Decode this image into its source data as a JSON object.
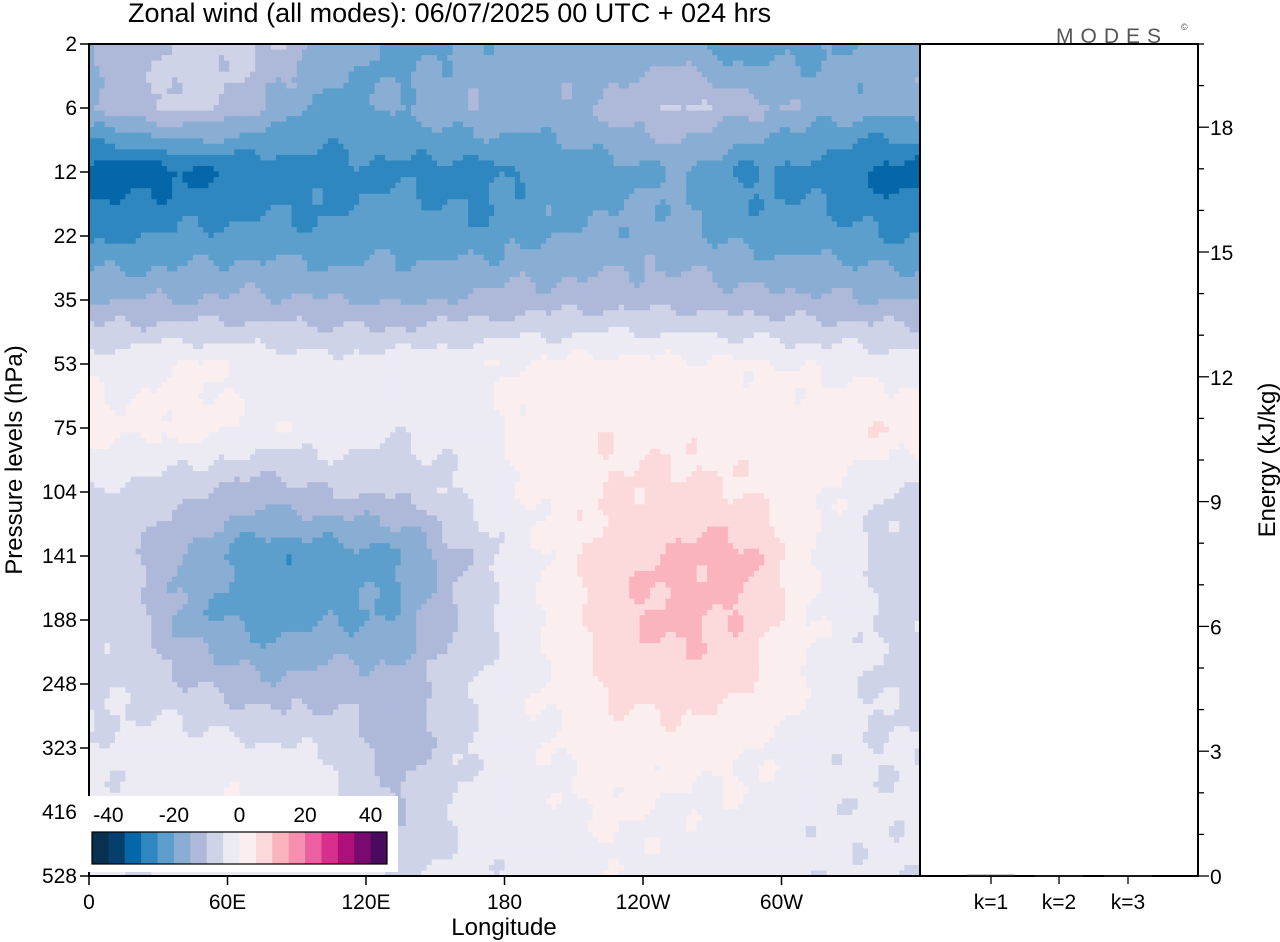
{
  "chart_data": {
    "type": "heatmap",
    "title": "Zonal wind (all modes):  06/07/2025  00 UTC  + 024 hrs",
    "logo": "MODES",
    "logo_mark": "©",
    "xlabel": "Longitude",
    "ylabel": "Pressure levels (hPa)",
    "x_ticks": [
      "0",
      "60E",
      "120E",
      "180",
      "120W",
      "60W"
    ],
    "y_ticks": [
      "2",
      "6",
      "12",
      "22",
      "35",
      "53",
      "75",
      "104",
      "141",
      "188",
      "248",
      "323",
      "416",
      "528"
    ],
    "colorbar": {
      "tick_labels": [
        "-40",
        "-20",
        "0",
        "20",
        "40"
      ],
      "levels": [
        -40,
        -35,
        -30,
        -25,
        -20,
        -15,
        -10,
        -5,
        0,
        5,
        10,
        15,
        20,
        25,
        30,
        35,
        40
      ],
      "colors": [
        "#08304f",
        "#063f6e",
        "#0567a8",
        "#2f87c0",
        "#5c9fcc",
        "#8aaed3",
        "#aeb9da",
        "#cfd3e8",
        "#ecebf4",
        "#fbeeee",
        "#fcd9da",
        "#fbb4bd",
        "#f78fb0",
        "#ec5fa1",
        "#d82f8f",
        "#ae0f79",
        "#7a0a70",
        "#4a0a5d"
      ]
    },
    "energy_panel": {
      "ylabel": "Energy (kJ/kg)",
      "y_ticks": [
        0,
        3,
        6,
        9,
        12,
        15,
        18
      ],
      "ylim": [
        0,
        20
      ],
      "categories": [
        "k=1",
        "k=2",
        "k=3"
      ],
      "values": [
        0.03,
        0.02,
        0.02
      ]
    },
    "field": {
      "x_range_deg": [
        0,
        360
      ],
      "x_tick_deg": [
        0,
        60,
        120,
        180,
        240,
        300
      ],
      "level_rows": [
        {
          "level": 2,
          "values": [
            -14,
            -7,
            -9,
            -16,
            -23,
            -20,
            -17,
            -19,
            -18,
            -24,
            -21,
            -18
          ]
        },
        {
          "level": 6,
          "values": [
            -12,
            -8,
            -15,
            -22,
            -19,
            -15,
            -17,
            -13,
            -9,
            -13,
            -17,
            -19
          ]
        },
        {
          "level": 12,
          "values": [
            -34,
            -31,
            -29,
            -27,
            -26,
            -28,
            -24,
            -22,
            -20,
            -26,
            -27,
            -32
          ]
        },
        {
          "level": 22,
          "values": [
            -26,
            -24,
            -23,
            -24,
            -22,
            -24,
            -20,
            -19,
            -18,
            -22,
            -23,
            -25
          ]
        },
        {
          "level": 35,
          "values": [
            -15,
            -15,
            -14,
            -15,
            -16,
            -14,
            -13,
            -12,
            -12,
            -13,
            -14,
            -15
          ]
        },
        {
          "level": 53,
          "values": [
            -2,
            1,
            -2,
            -3,
            -2,
            -1,
            1,
            2,
            1,
            1,
            -1,
            -2
          ]
        },
        {
          "level": 75,
          "values": [
            1,
            2,
            -1,
            -1,
            -4,
            -3,
            3,
            4,
            3,
            2,
            3,
            5
          ]
        },
        {
          "level": 104,
          "values": [
            -6,
            -9,
            -13,
            -10,
            -9,
            -4,
            1,
            5,
            7,
            5,
            2,
            -5
          ]
        },
        {
          "level": 141,
          "values": [
            -8,
            -17,
            -24,
            -23,
            -21,
            -9,
            -1,
            8,
            11,
            12,
            -1,
            -7
          ]
        },
        {
          "level": 188,
          "values": [
            -7,
            -18,
            -23,
            -21,
            -19,
            -8,
            0,
            8,
            12,
            9,
            0,
            -6
          ]
        },
        {
          "level": 248,
          "values": [
            -6,
            -10,
            -14,
            -12,
            -13,
            -6,
            0,
            6,
            8,
            5,
            -1,
            -6
          ]
        },
        {
          "level": 323,
          "values": [
            -4,
            -2,
            -4,
            -6,
            -13,
            -5,
            -1,
            3,
            2,
            1,
            -3,
            -5
          ]
        },
        {
          "level": 416,
          "values": [
            -4,
            -1,
            1,
            -2,
            -10,
            -3,
            -2,
            1,
            -1,
            -1,
            -4,
            -4
          ]
        },
        {
          "level": 528,
          "values": [
            -5,
            -4,
            -2,
            -3,
            -6,
            -4,
            -4,
            -1,
            -2,
            -3,
            -4,
            -4
          ]
        }
      ]
    }
  }
}
